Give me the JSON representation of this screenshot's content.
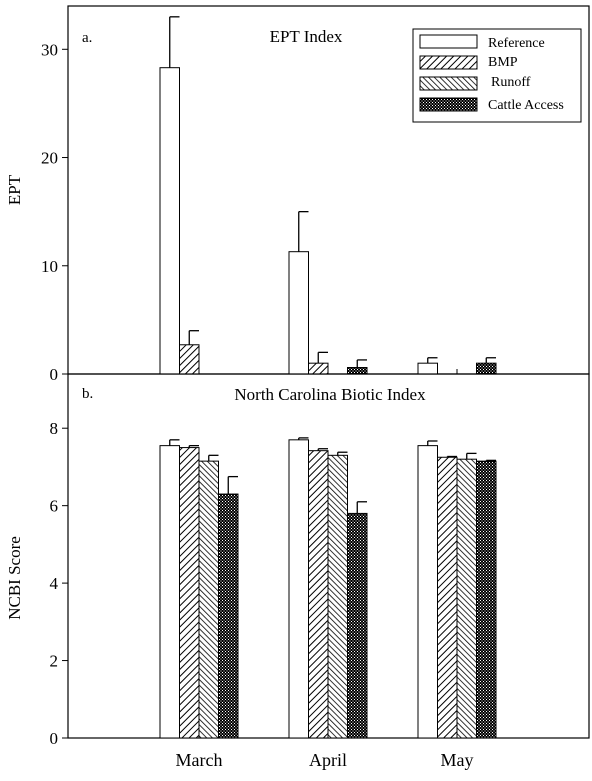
{
  "chart_data": [
    {
      "panel_label": "a.",
      "type": "bar",
      "title": "EPT Index",
      "xlabel": "",
      "ylabel": "EPT",
      "ylim": [
        0,
        34
      ],
      "yticks": [
        "0",
        "10",
        "20",
        "30"
      ],
      "categories": [
        "March",
        "April",
        "May"
      ],
      "legend_position": "top-right",
      "series": [
        {
          "name": "Reference",
          "pattern": "empty",
          "values": [
            28.3,
            11.3,
            1.0
          ],
          "errors": [
            4.7,
            3.7,
            0.5
          ]
        },
        {
          "name": "BMP",
          "pattern": "forward-hatch",
          "values": [
            2.7,
            1.0,
            0
          ],
          "errors": [
            1.3,
            1.0,
            0
          ]
        },
        {
          "name": "Runoff",
          "pattern": "back-hatch",
          "values": [
            0,
            0,
            0
          ],
          "errors": [
            0,
            0,
            0
          ]
        },
        {
          "name": "Cattle Access",
          "pattern": "dense-crosshatch",
          "values": [
            0,
            0.6,
            1.0
          ],
          "errors": [
            0,
            0.7,
            0.5
          ]
        }
      ]
    },
    {
      "panel_label": "b.",
      "type": "bar",
      "title": "North Carolina Biotic Index",
      "xlabel": "",
      "ylabel": "NCBI Score",
      "ylim": [
        0,
        9.4
      ],
      "yticks": [
        "0",
        "2",
        "4",
        "6",
        "8"
      ],
      "categories": [
        "March",
        "April",
        "May"
      ],
      "series": [
        {
          "name": "Reference",
          "pattern": "empty",
          "values": [
            7.55,
            7.7,
            7.55
          ],
          "errors": [
            0.15,
            0.05,
            0.12
          ]
        },
        {
          "name": "BMP",
          "pattern": "forward-hatch",
          "values": [
            7.5,
            7.42,
            7.25
          ],
          "errors": [
            0.05,
            0.05,
            0.02
          ]
        },
        {
          "name": "Runoff",
          "pattern": "back-hatch",
          "values": [
            7.15,
            7.3,
            7.2
          ],
          "errors": [
            0.15,
            0.08,
            0.15
          ]
        },
        {
          "name": "Cattle Access",
          "pattern": "dense-crosshatch",
          "values": [
            6.3,
            5.8,
            7.15
          ],
          "errors": [
            0.45,
            0.3,
            0.02
          ]
        }
      ]
    }
  ]
}
